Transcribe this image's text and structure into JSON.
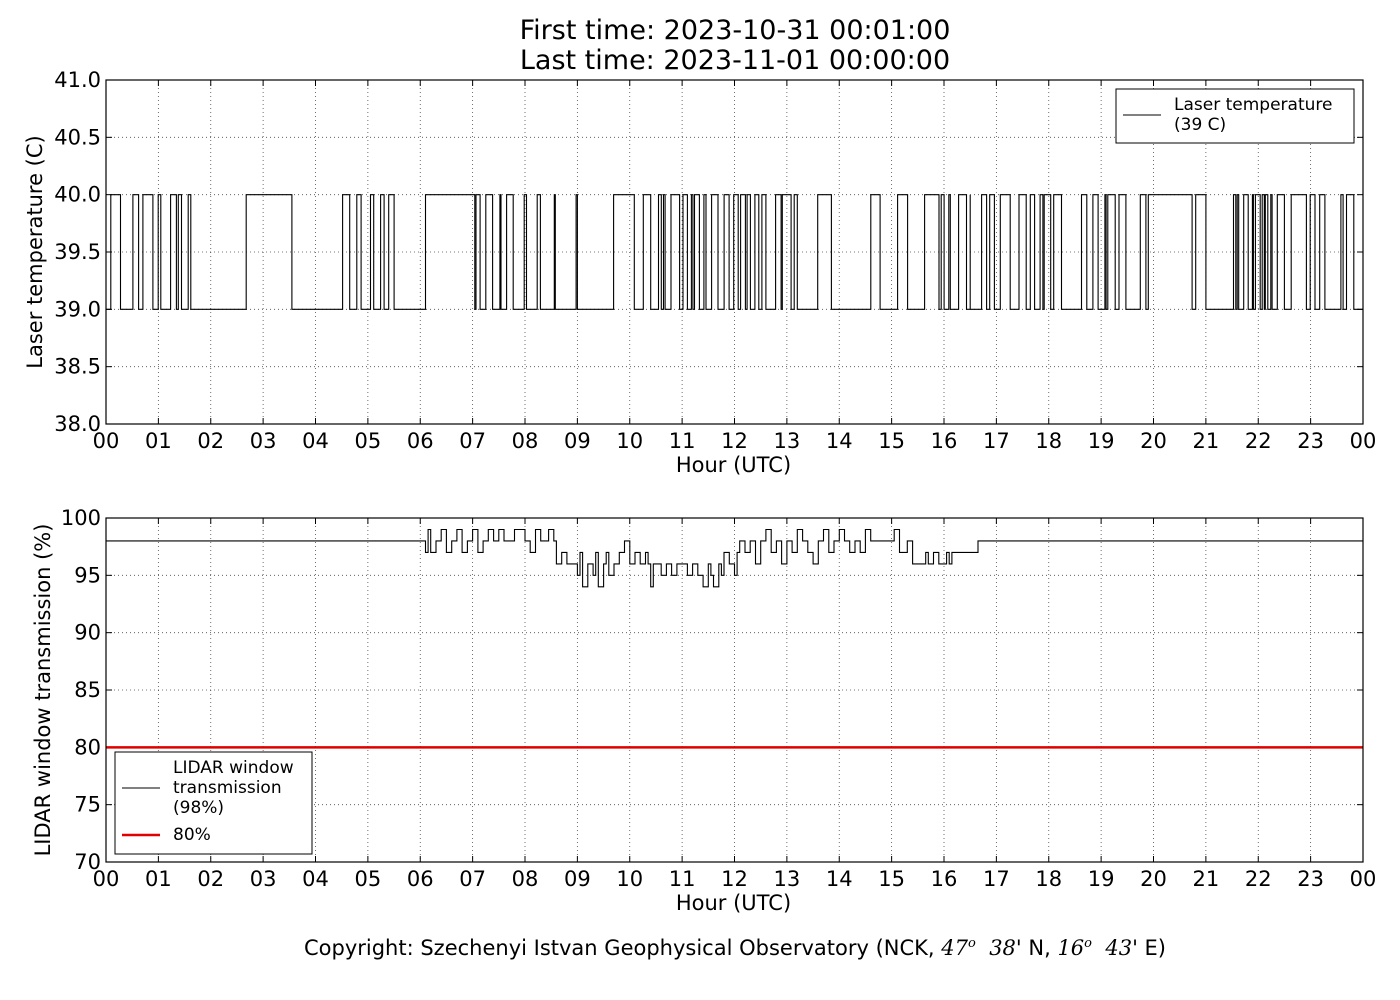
{
  "title": {
    "line1": "First time: 2023-10-31 00:01:00",
    "line2": "Last time: 2023-11-01 00:00:00"
  },
  "copyright": {
    "prefix": "Copyright: Szechenyi Istvan Geophysical Observatory (NCK, ",
    "lat_deg": "47",
    "lat_min": "38",
    "lat_hemi": "' N, ",
    "lon_deg": "16",
    "lon_min": "43",
    "lon_hemi": "' E)",
    "degree_mark": "o"
  },
  "chart_data": [
    {
      "type": "line",
      "name": "laser-temperature-chart",
      "xlabel": "Hour (UTC)",
      "ylabel": "Laser temperature (C)",
      "xlim": [
        0,
        24
      ],
      "ylim": [
        38.0,
        41.0
      ],
      "xticks": [
        "00",
        "01",
        "02",
        "03",
        "04",
        "05",
        "06",
        "07",
        "08",
        "09",
        "10",
        "11",
        "12",
        "13",
        "14",
        "15",
        "16",
        "17",
        "18",
        "19",
        "20",
        "21",
        "22",
        "23",
        "00"
      ],
      "yticks": [
        "38.0",
        "38.5",
        "39.0",
        "39.5",
        "40.0",
        "40.5",
        "41.0"
      ],
      "grid": true,
      "legend": {
        "placement": "top-right",
        "entries": [
          {
            "label": [
              "Laser temperature",
              "(39 C)"
            ],
            "color": "#000000"
          }
        ]
      },
      "series": [
        {
          "color": "#000000",
          "levels": [
            39.0,
            40.0
          ],
          "oscillation_segments": [
            {
              "x0": 0.0,
              "x1": 1.62,
              "density": 0.6
            },
            {
              "x0": 2.4,
              "x1": 2.75,
              "density": 0.35
            },
            {
              "x0": 3.45,
              "x1": 3.55,
              "density": 0.3
            },
            {
              "x0": 4.4,
              "x1": 5.5,
              "density": 0.4
            },
            {
              "x0": 6.85,
              "x1": 9.0,
              "density": 0.5
            },
            {
              "x0": 9.3,
              "x1": 10.4,
              "density": 0.25
            },
            {
              "x0": 10.5,
              "x1": 13.2,
              "density": 0.7
            },
            {
              "x0": 13.3,
              "x1": 13.85,
              "density": 0.4
            },
            {
              "x0": 14.5,
              "x1": 16.5,
              "density": 0.45
            },
            {
              "x0": 16.6,
              "x1": 19.9,
              "density": 0.55
            },
            {
              "x0": 20.5,
              "x1": 21.0,
              "density": 0.2
            },
            {
              "x0": 21.45,
              "x1": 22.5,
              "density": 0.75
            },
            {
              "x0": 22.6,
              "x1": 23.9,
              "density": 0.45
            }
          ],
          "steady_segments": [
            {
              "x0": 1.62,
              "x1": 2.4,
              "value": 39.0
            },
            {
              "x0": 2.75,
              "x1": 3.45,
              "value": 40.0
            },
            {
              "x0": 3.55,
              "x1": 4.4,
              "value": 39.0
            },
            {
              "x0": 5.5,
              "x1": 6.1,
              "value": 39.0
            },
            {
              "x0": 6.1,
              "x1": 6.85,
              "value": 40.0
            },
            {
              "x0": 9.0,
              "x1": 9.3,
              "value": 39.0
            },
            {
              "x0": 10.4,
              "x1": 10.5,
              "value": 39.0
            },
            {
              "x0": 13.2,
              "x1": 13.3,
              "value": 39.0
            },
            {
              "x0": 13.85,
              "x1": 14.5,
              "value": 39.0
            },
            {
              "x0": 16.5,
              "x1": 16.6,
              "value": 39.0
            },
            {
              "x0": 19.9,
              "x1": 20.5,
              "value": 40.0
            },
            {
              "x0": 21.0,
              "x1": 21.45,
              "value": 39.0
            },
            {
              "x0": 22.5,
              "x1": 22.6,
              "value": 39.0
            },
            {
              "x0": 23.9,
              "x1": 24.0,
              "value": 39.0
            }
          ]
        }
      ]
    },
    {
      "type": "line",
      "name": "lidar-window-chart",
      "xlabel": "Hour (UTC)",
      "ylabel": "LIDAR window transmission (%)",
      "xlim": [
        0,
        24
      ],
      "ylim": [
        70,
        100
      ],
      "xticks": [
        "00",
        "01",
        "02",
        "03",
        "04",
        "05",
        "06",
        "07",
        "08",
        "09",
        "10",
        "11",
        "12",
        "13",
        "14",
        "15",
        "16",
        "17",
        "18",
        "19",
        "20",
        "21",
        "22",
        "23",
        "00"
      ],
      "yticks": [
        "70",
        "75",
        "80",
        "85",
        "90",
        "95",
        "100"
      ],
      "grid": true,
      "legend": {
        "placement": "lower-left",
        "entries": [
          {
            "label": [
              "LIDAR window",
              "transmission",
              "(98%)"
            ],
            "color": "#000000"
          },
          {
            "label": [
              "80%"
            ],
            "color": "#e00000"
          }
        ]
      },
      "threshold": {
        "value": 80,
        "color": "#e00000"
      },
      "series": [
        {
          "color": "#000000",
          "points": [
            [
              0.0,
              98
            ],
            [
              6.05,
              98
            ],
            [
              6.1,
              97
            ],
            [
              6.15,
              99
            ],
            [
              6.2,
              97
            ],
            [
              6.3,
              98
            ],
            [
              6.4,
              99
            ],
            [
              6.5,
              97
            ],
            [
              6.6,
              98
            ],
            [
              6.7,
              99
            ],
            [
              6.8,
              97
            ],
            [
              6.9,
              98
            ],
            [
              7.0,
              99
            ],
            [
              7.1,
              97
            ],
            [
              7.2,
              98
            ],
            [
              7.3,
              99
            ],
            [
              7.4,
              98
            ],
            [
              7.5,
              99
            ],
            [
              7.6,
              98
            ],
            [
              7.8,
              99
            ],
            [
              8.0,
              98
            ],
            [
              8.1,
              97
            ],
            [
              8.2,
              99
            ],
            [
              8.3,
              98
            ],
            [
              8.45,
              99
            ],
            [
              8.55,
              98
            ],
            [
              8.6,
              96
            ],
            [
              8.7,
              97
            ],
            [
              8.8,
              96
            ],
            [
              8.9,
              96
            ],
            [
              9.0,
              95
            ],
            [
              9.05,
              97
            ],
            [
              9.1,
              94
            ],
            [
              9.2,
              96
            ],
            [
              9.3,
              95
            ],
            [
              9.35,
              97
            ],
            [
              9.4,
              94
            ],
            [
              9.5,
              96
            ],
            [
              9.55,
              97
            ],
            [
              9.6,
              95
            ],
            [
              9.7,
              96
            ],
            [
              9.8,
              97
            ],
            [
              9.9,
              98
            ],
            [
              10.0,
              96
            ],
            [
              10.1,
              97
            ],
            [
              10.2,
              96
            ],
            [
              10.3,
              97
            ],
            [
              10.35,
              96
            ],
            [
              10.4,
              94
            ],
            [
              10.45,
              96
            ],
            [
              10.6,
              95
            ],
            [
              10.7,
              96
            ],
            [
              10.8,
              95
            ],
            [
              10.9,
              96
            ],
            [
              11.0,
              96
            ],
            [
              11.1,
              95
            ],
            [
              11.2,
              96
            ],
            [
              11.3,
              95
            ],
            [
              11.4,
              94
            ],
            [
              11.5,
              96
            ],
            [
              11.55,
              95
            ],
            [
              11.6,
              94
            ],
            [
              11.7,
              96
            ],
            [
              11.75,
              95
            ],
            [
              11.8,
              97
            ],
            [
              11.9,
              96
            ],
            [
              12.0,
              95
            ],
            [
              12.05,
              97
            ],
            [
              12.1,
              98
            ],
            [
              12.2,
              97
            ],
            [
              12.3,
              98
            ],
            [
              12.4,
              96
            ],
            [
              12.5,
              98
            ],
            [
              12.6,
              99
            ],
            [
              12.7,
              97
            ],
            [
              12.8,
              98
            ],
            [
              12.9,
              96
            ],
            [
              13.0,
              98
            ],
            [
              13.1,
              97
            ],
            [
              13.2,
              99
            ],
            [
              13.3,
              98
            ],
            [
              13.4,
              97
            ],
            [
              13.5,
              96
            ],
            [
              13.6,
              98
            ],
            [
              13.7,
              99
            ],
            [
              13.8,
              97
            ],
            [
              13.9,
              98
            ],
            [
              14.0,
              99
            ],
            [
              14.1,
              98
            ],
            [
              14.2,
              97
            ],
            [
              14.3,
              98
            ],
            [
              14.4,
              97
            ],
            [
              14.5,
              99
            ],
            [
              14.6,
              98
            ],
            [
              15.0,
              98
            ],
            [
              15.05,
              99
            ],
            [
              15.15,
              97
            ],
            [
              15.3,
              98
            ],
            [
              15.4,
              96
            ],
            [
              15.6,
              96
            ],
            [
              15.65,
              97
            ],
            [
              15.7,
              96
            ],
            [
              15.8,
              97
            ],
            [
              15.9,
              96
            ],
            [
              16.0,
              96
            ],
            [
              16.05,
              97
            ],
            [
              16.1,
              96
            ],
            [
              16.15,
              97
            ],
            [
              16.6,
              97
            ],
            [
              16.65,
              98
            ],
            [
              24.0,
              98
            ]
          ]
        }
      ]
    }
  ]
}
